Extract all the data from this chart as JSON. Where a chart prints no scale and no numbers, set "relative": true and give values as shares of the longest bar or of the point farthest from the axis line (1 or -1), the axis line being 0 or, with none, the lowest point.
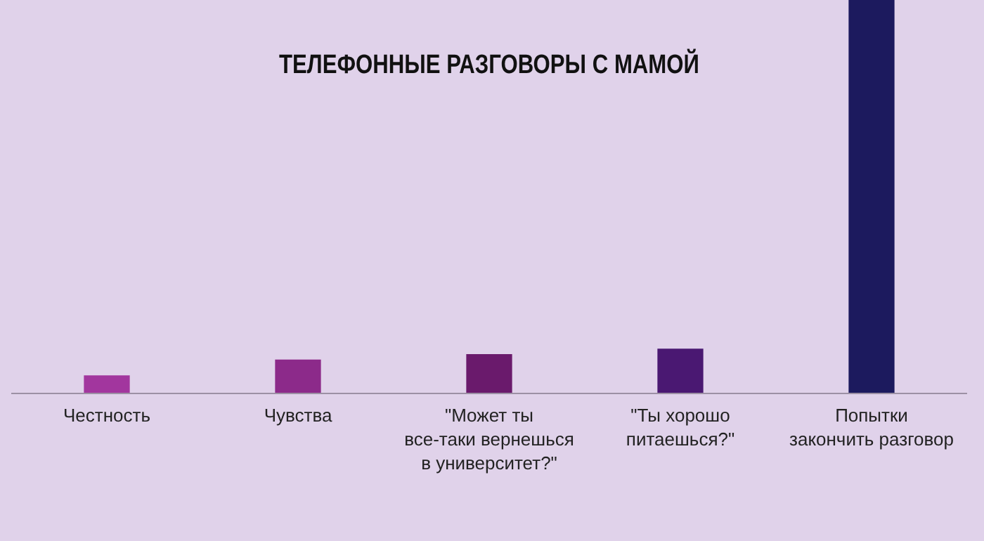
{
  "chart_data": {
    "type": "bar",
    "title": "ТЕЛЕФОННЫЕ РАЗГОВОРЫ С МАМОЙ",
    "categories": [
      "Честность",
      "Чувства",
      "\"Может ты\nвсе-таки вернешься\nв университет?\"",
      "\"Ты хорошо\nпитаешься?\"",
      "Попытки\nзакончить разговор"
    ],
    "values": [
      0.046,
      0.086,
      0.1,
      0.114,
      1
    ],
    "colors": [
      "#a2369e",
      "#8c2a8a",
      "#6a1a6c",
      "#4a1872",
      "#1c1a5e"
    ],
    "relative": true,
    "grid": false,
    "legend": false
  }
}
